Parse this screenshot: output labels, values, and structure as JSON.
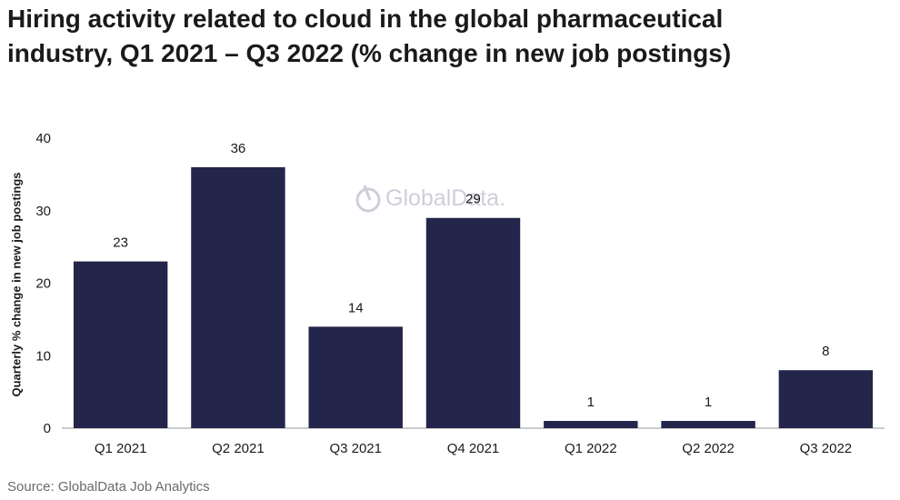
{
  "title": "Hiring activity related to cloud in the global pharmaceutical industry, Q1 2021 – Q3 2022 (% change in new job postings)",
  "source": "Source: GlobalData Job Analytics",
  "watermark": "GlobalData.",
  "colors": {
    "bar": "#24254a",
    "axis": "#999999"
  },
  "chart_data": {
    "type": "bar",
    "title": "Hiring activity related to cloud in the global pharmaceutical industry, Q1 2021 – Q3 2022 (% change in new job postings)",
    "xlabel": "",
    "ylabel": "Quarterly % change in new job postings",
    "categories": [
      "Q1 2021",
      "Q2 2021",
      "Q3 2021",
      "Q4 2021",
      "Q1 2022",
      "Q2 2022",
      "Q3 2022"
    ],
    "values": [
      23,
      36,
      14,
      29,
      1,
      1,
      8
    ],
    "ylim": [
      0,
      40
    ],
    "yticks": [
      0,
      10,
      20,
      30,
      40
    ],
    "grid": false,
    "data_labels": true
  }
}
